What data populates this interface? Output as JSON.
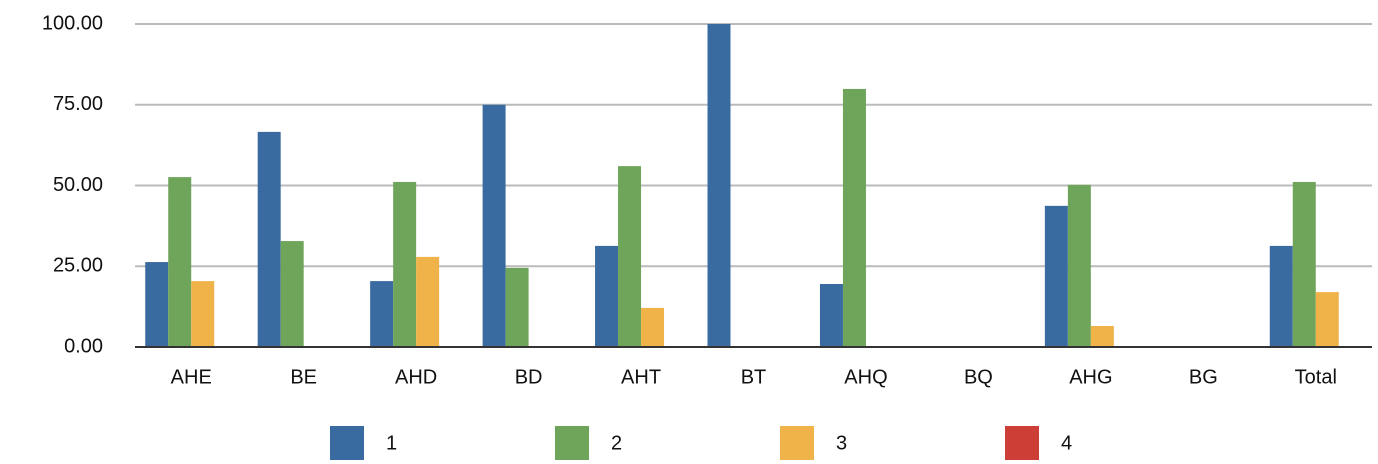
{
  "chart_data": {
    "type": "bar",
    "categories": [
      "AHE",
      "BE",
      "AHD",
      "BD",
      "AHT",
      "BT",
      "AHQ",
      "BQ",
      "AHG",
      "BG",
      "Total"
    ],
    "series": [
      {
        "name": "1",
        "color": "#3a6ba0",
        "values": [
          26.3,
          66.6,
          20.4,
          75,
          31.3,
          100,
          19.5,
          0,
          43.7,
          0,
          31.3
        ]
      },
      {
        "name": "2",
        "color": "#6fa55a",
        "values": [
          52.6,
          32.8,
          51.1,
          24.5,
          56.0,
          0,
          79.9,
          0,
          50.2,
          0,
          51.1
        ]
      },
      {
        "name": "3",
        "color": "#f0b34a",
        "values": [
          20.4,
          0,
          27.9,
          0,
          12.1,
          0,
          0,
          0,
          6.5,
          0,
          17.0
        ]
      },
      {
        "name": "4",
        "color": "#cc3e36",
        "values": [
          0,
          0,
          0,
          0,
          0,
          0,
          0,
          0,
          0,
          0,
          0
        ]
      }
    ],
    "ylim": [
      0,
      100
    ],
    "yticks": [
      {
        "value": 0,
        "label": "0.00"
      },
      {
        "value": 25,
        "label": "25.00"
      },
      {
        "value": 50,
        "label": "50.00"
      },
      {
        "value": 75,
        "label": "75.00"
      },
      {
        "value": 100,
        "label": "100.00"
      }
    ],
    "grid": true,
    "legend": "bottom"
  }
}
